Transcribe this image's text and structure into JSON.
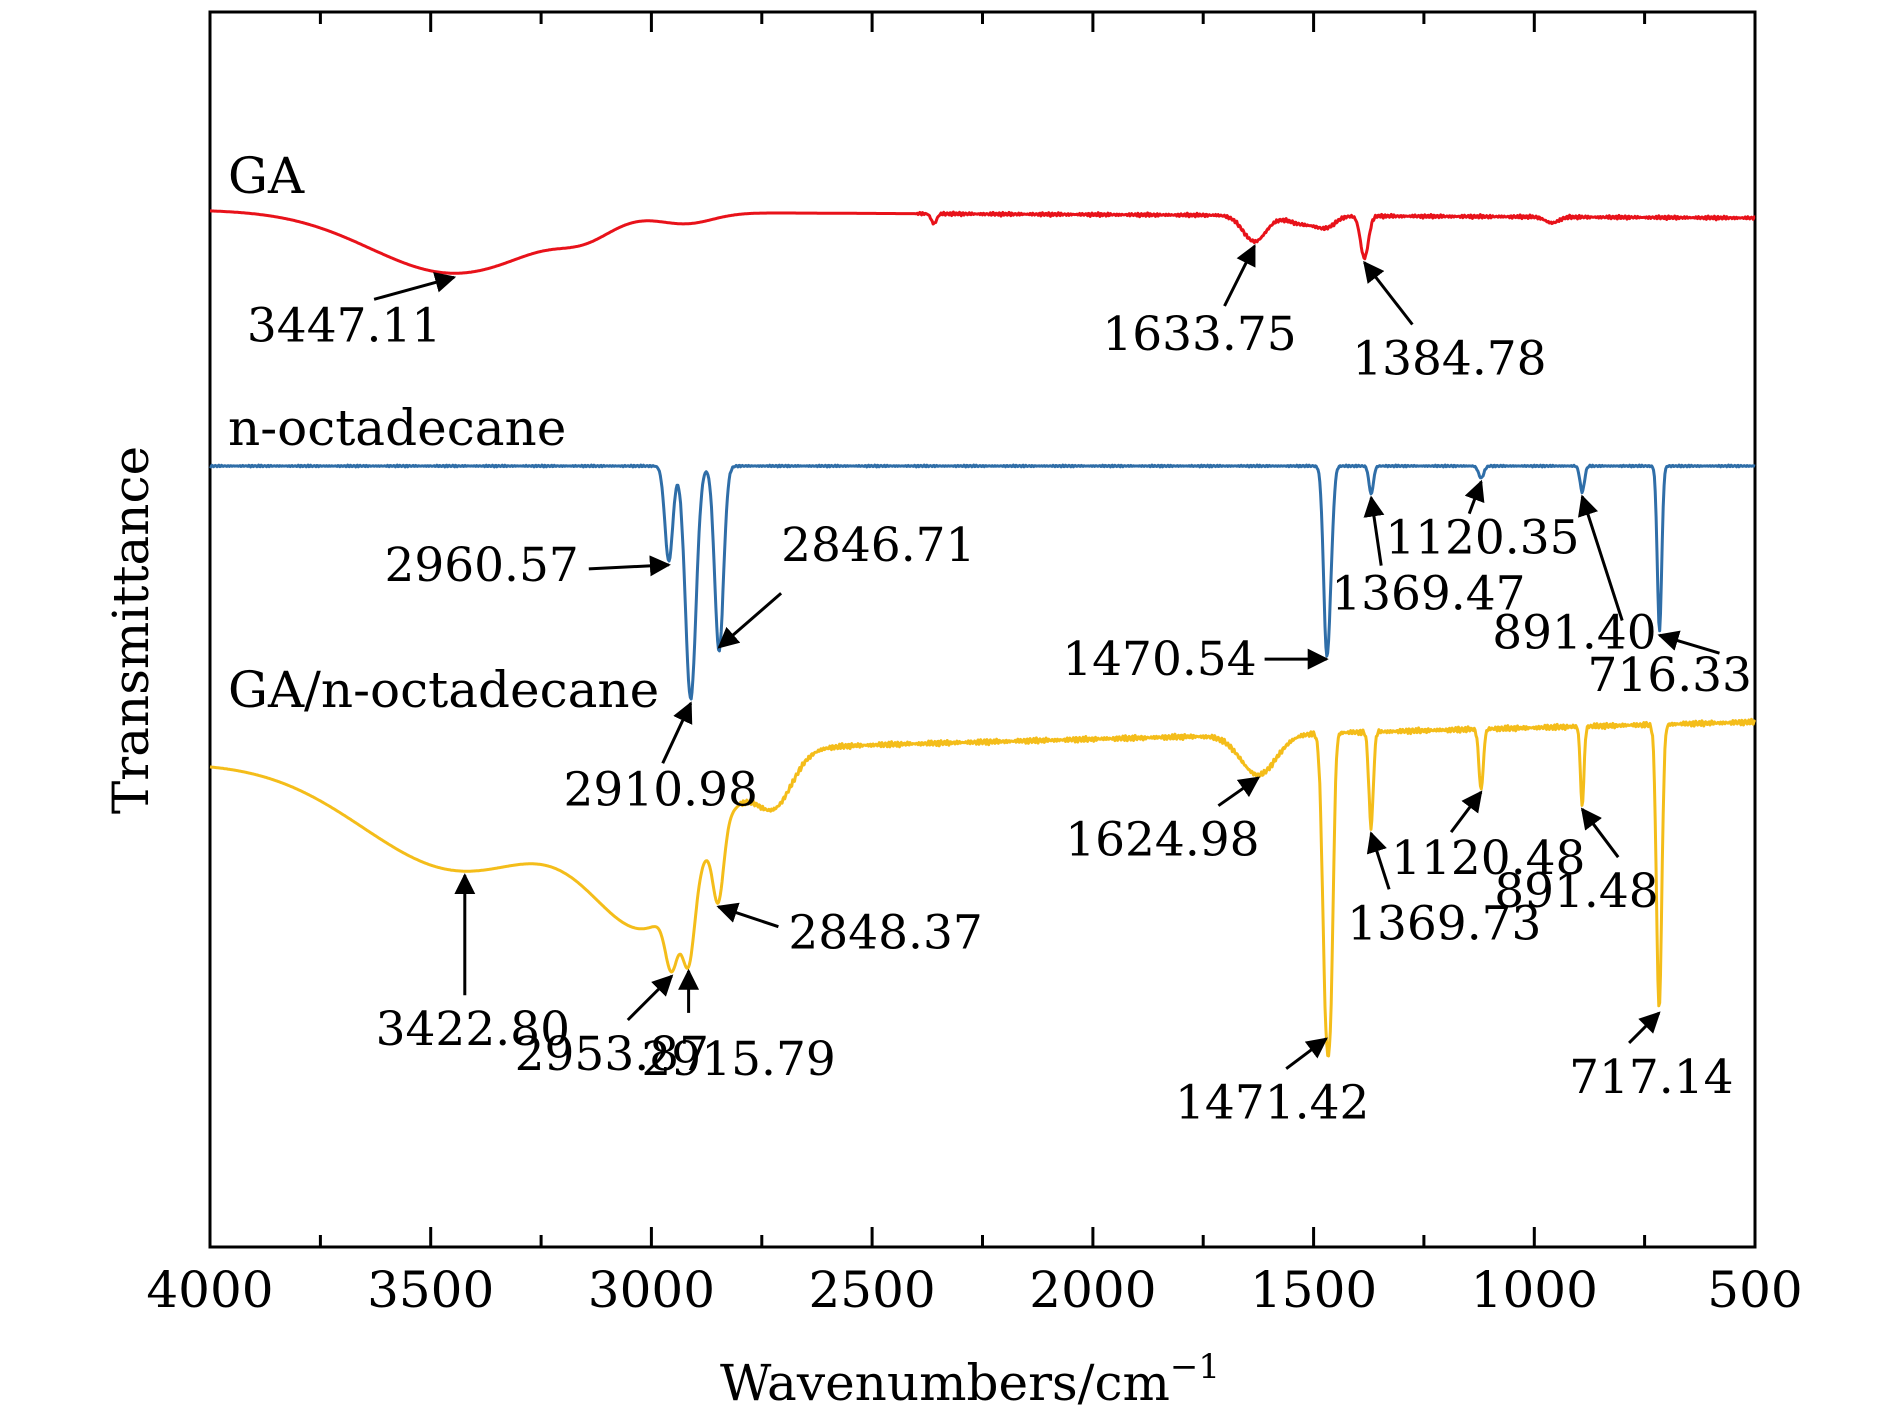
{
  "chart_data": {
    "type": "line",
    "title": "",
    "xlabel": "Wavenumbers/cm",
    "xlabel_superscript": "−1",
    "ylabel": "Transmittance",
    "xlim": [
      4000,
      500
    ],
    "x_reversed": true,
    "y_ticks_shown": false,
    "grid": false,
    "legend": "none (series labelled inline above each curve)",
    "x_ticks": [
      4000,
      3500,
      3000,
      2500,
      2000,
      1500,
      1000,
      500
    ],
    "x_tick_labels": [
      "4000",
      "3500",
      "3000",
      "2500",
      "2000",
      "1500",
      "1000",
      "500"
    ],
    "series": [
      {
        "name": "GA",
        "color": "#e8121a",
        "baseline": 0,
        "noise": 2,
        "peaks": [
          {
            "x": 3447.11,
            "depth": 62,
            "width": 190
          },
          {
            "x": 3150,
            "depth": 14,
            "width": 60
          },
          {
            "x": 2920,
            "depth": 10,
            "width": 60
          },
          {
            "x": 2360,
            "depth": 10,
            "width": 6
          },
          {
            "x": 1633.75,
            "depth": 26,
            "width": 26
          },
          {
            "x": 1520,
            "depth": 9,
            "width": 35
          },
          {
            "x": 1470,
            "depth": 9,
            "width": 20
          },
          {
            "x": 1384.78,
            "depth": 42,
            "width": 9
          },
          {
            "x": 960,
            "depth": 6,
            "width": 15
          }
        ],
        "annotations": [
          {
            "label": "3447.11",
            "x": 3447.11
          },
          {
            "label": "1633.75",
            "x": 1633.75
          },
          {
            "label": "1384.78",
            "x": 1384.78
          }
        ]
      },
      {
        "name": "n-octadecane",
        "color": "#2f6ea8",
        "baseline": 0,
        "noise": 1,
        "peaks": [
          {
            "x": 2960.57,
            "depth": 95,
            "width": 9
          },
          {
            "x": 2910.98,
            "depth": 233,
            "width": 12
          },
          {
            "x": 2846.71,
            "depth": 185,
            "width": 10
          },
          {
            "x": 1470.54,
            "depth": 178,
            "width": 7
          },
          {
            "x": 1460,
            "depth": 50,
            "width": 6
          },
          {
            "x": 1369.47,
            "depth": 28,
            "width": 5
          },
          {
            "x": 1120.35,
            "depth": 12,
            "width": 6
          },
          {
            "x": 891.4,
            "depth": 26,
            "width": 5
          },
          {
            "x": 716.33,
            "depth": 165,
            "width": 5
          }
        ],
        "annotations": [
          {
            "label": "2960.57",
            "x": 2960.57
          },
          {
            "label": "2910.98",
            "x": 2910.98
          },
          {
            "label": "2846.71",
            "x": 2846.71
          },
          {
            "label": "1470.54",
            "x": 1470.54
          },
          {
            "label": "1369.47",
            "x": 1369.47
          },
          {
            "label": "1120.35",
            "x": 1120.35
          },
          {
            "label": "891.40",
            "x": 891.4
          },
          {
            "label": "716.33",
            "x": 716.33
          }
        ]
      },
      {
        "name": "GA/n-octadecane",
        "color": "#f4bd1a",
        "baseline": 0,
        "noise": 3,
        "peaks": [
          {
            "x": 3422.8,
            "depth": 115,
            "width": 230
          },
          {
            "x": 3000,
            "depth": 155,
            "width": 130
          },
          {
            "x": 2953.87,
            "depth": 60,
            "width": 14
          },
          {
            "x": 2915.79,
            "depth": 80,
            "width": 14
          },
          {
            "x": 2848.37,
            "depth": 70,
            "width": 12
          },
          {
            "x": 2720,
            "depth": 45,
            "width": 40
          },
          {
            "x": 1624.98,
            "depth": 40,
            "width": 40
          },
          {
            "x": 1471.42,
            "depth": 275,
            "width": 8
          },
          {
            "x": 1460,
            "depth": 170,
            "width": 6
          },
          {
            "x": 1369.73,
            "depth": 95,
            "width": 5
          },
          {
            "x": 1120.48,
            "depth": 60,
            "width": 5
          },
          {
            "x": 891.48,
            "depth": 80,
            "width": 4
          },
          {
            "x": 717.14,
            "depth": 285,
            "width": 6
          }
        ],
        "annotations": [
          {
            "label": "3422.80",
            "x": 3422.8
          },
          {
            "label": "2953.87",
            "x": 2953.87
          },
          {
            "label": "2915.79",
            "x": 2915.79
          },
          {
            "label": "2848.37",
            "x": 2848.37
          },
          {
            "label": "1624.98",
            "x": 1624.98
          },
          {
            "label": "1471.42",
            "x": 1471.42
          },
          {
            "label": "1369.73",
            "x": 1369.73
          },
          {
            "label": "1120.48",
            "x": 1120.48
          },
          {
            "label": "891.48",
            "x": 891.48
          },
          {
            "label": "717.14",
            "x": 717.14
          }
        ]
      }
    ]
  }
}
